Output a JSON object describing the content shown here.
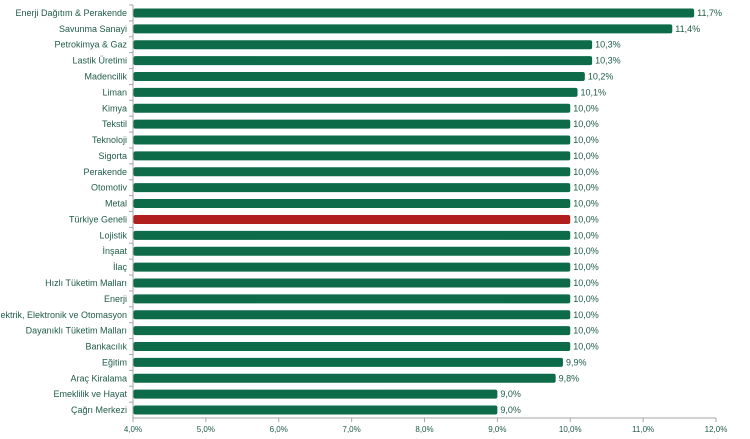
{
  "chart_data": {
    "type": "bar",
    "orientation": "horizontal",
    "categories": [
      "Enerji Dağıtım & Perakende",
      "Savunma Sanayi",
      "Petrokimya & Gaz",
      "Lastik Üretimi",
      "Madencilik",
      "Liman",
      "Kimya",
      "Tekstil",
      "Teknoloji",
      "Sigorta",
      "Perakende",
      "Otomotiv",
      "Metal",
      "Türkiye Geneli",
      "Lojistik",
      "İnşaat",
      "İlaç",
      "Hızlı Tüketim Malları",
      "Enerji",
      "Elektrik, Elektronik ve Otomasyon",
      "Dayanıklı Tüketim Malları",
      "Bankacılık",
      "Eğitim",
      "Araç Kiralama",
      "Emeklilik ve Hayat",
      "Çağrı Merkezi"
    ],
    "values": [
      11.7,
      11.4,
      10.3,
      10.3,
      10.2,
      10.1,
      10.0,
      10.0,
      10.0,
      10.0,
      10.0,
      10.0,
      10.0,
      10.0,
      10.0,
      10.0,
      10.0,
      10.0,
      10.0,
      10.0,
      10.0,
      10.0,
      9.9,
      9.8,
      9.0,
      9.0
    ],
    "value_labels": [
      "11,7%",
      "11,4%",
      "10,3%",
      "10,3%",
      "10,2%",
      "10,1%",
      "10,0%",
      "10,0%",
      "10,0%",
      "10,0%",
      "10,0%",
      "10,0%",
      "10,0%",
      "10,0%",
      "10,0%",
      "10,0%",
      "10,0%",
      "10,0%",
      "10,0%",
      "10,0%",
      "10,0%",
      "10,0%",
      "9,9%",
      "9,8%",
      "9,0%",
      "9,0%"
    ],
    "highlight_index": 13,
    "xlim": [
      4.0,
      12.0
    ],
    "xticks": [
      4.0,
      5.0,
      6.0,
      7.0,
      8.0,
      9.0,
      10.0,
      11.0,
      12.0
    ],
    "xtick_labels": [
      "4,0%",
      "5,0%",
      "6,0%",
      "7,0%",
      "8,0%",
      "9,0%",
      "10,0%",
      "11,0%",
      "12,0%"
    ],
    "title": "",
    "xlabel": "",
    "ylabel": "",
    "grid": false,
    "colors": {
      "bar": "#0d6b4a",
      "highlight": "#b01e1e",
      "text": "#1f5c45",
      "axis": "#a6a6a6"
    }
  }
}
